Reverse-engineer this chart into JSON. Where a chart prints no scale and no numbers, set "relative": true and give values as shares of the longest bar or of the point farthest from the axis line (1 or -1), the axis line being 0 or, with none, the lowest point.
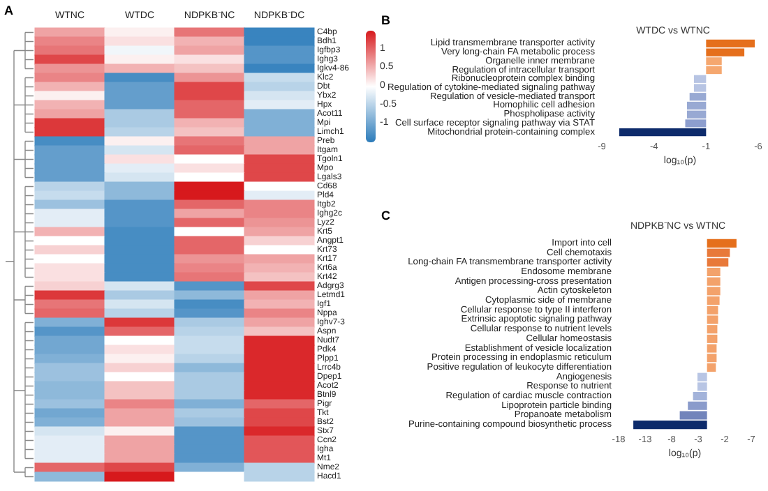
{
  "chart_data": [
    {
      "type": "heatmap",
      "annotations": [
        "A"
      ],
      "categories": [
        "WTNC",
        "WTDC",
        "NDPKB⁻NC",
        "NDPKB⁻DC"
      ],
      "y_categories": [
        "C4bp",
        "Bdh1",
        "Igfbp3",
        "Ighg3",
        "Igkv4-86",
        "Klc2",
        "Dbt",
        "Ybx2",
        "Hpx",
        "Acot11",
        "Mpi",
        "Limch1",
        "Preb",
        "Itgam",
        "Tgoln1",
        "Mpo",
        "Lgals3",
        "Cd68",
        "Pld4",
        "Itgb2",
        "Ighg2c",
        "Lyz2",
        "Krt5",
        "Angpt1",
        "Krt73",
        "Krt17",
        "Krt6a",
        "Krt42",
        "Adgrg3",
        "Letmd1",
        "Igf1",
        "Nppa",
        "Ighv7-3",
        "Aspn",
        "Nudt7",
        "Pdk4",
        "Plpp1",
        "Lrrc4b",
        "Dpep1",
        "Acot2",
        "Btnl9",
        "Pigr",
        "Tkt",
        "Bst2",
        "Stx7",
        "Ccn2",
        "Igha",
        "Mt1",
        "Nme2",
        "Hacd1"
      ],
      "cells": [
        [
          0.6,
          0.1,
          0.9,
          -1.4
        ],
        [
          0.8,
          0.2,
          0.5,
          -1.4
        ],
        [
          0.9,
          -0.1,
          0.6,
          -1.2
        ],
        [
          1.2,
          0.1,
          0.2,
          -1.2
        ],
        [
          0.7,
          0.5,
          0.4,
          -1.4
        ],
        [
          0.8,
          -1.3,
          0.7,
          -0.4
        ],
        [
          0.5,
          -1.1,
          1.2,
          -0.5
        ],
        [
          0.1,
          -1.1,
          1.2,
          -0.3
        ],
        [
          0.5,
          -1.1,
          1.0,
          -0.2
        ],
        [
          0.6,
          -0.6,
          1.0,
          -0.9
        ],
        [
          1.3,
          -0.6,
          0.5,
          -0.9
        ],
        [
          1.3,
          -0.5,
          0.4,
          -0.9
        ],
        [
          -1.3,
          0.1,
          0.9,
          0.6
        ],
        [
          -1.1,
          -0.3,
          1.0,
          0.6
        ],
        [
          -1.1,
          0.2,
          0.0,
          1.2
        ],
        [
          -1.1,
          -0.2,
          0.2,
          1.2
        ],
        [
          -1.1,
          -0.3,
          0.0,
          1.2
        ],
        [
          -0.5,
          -0.8,
          1.5,
          0.0
        ],
        [
          -0.4,
          -0.8,
          1.5,
          -0.2
        ],
        [
          -0.7,
          -1.2,
          1.0,
          0.8
        ],
        [
          -0.2,
          -1.2,
          0.6,
          0.8
        ],
        [
          -0.2,
          -1.2,
          1.0,
          0.7
        ],
        [
          0.5,
          -1.3,
          0.0,
          0.6
        ],
        [
          0.0,
          -1.3,
          1.0,
          0.3
        ],
        [
          0.3,
          -1.3,
          1.0,
          0.0
        ],
        [
          0.0,
          -1.3,
          0.7,
          0.6
        ],
        [
          0.2,
          -1.3,
          0.8,
          0.5
        ],
        [
          0.2,
          -1.3,
          0.9,
          0.4
        ],
        [
          0.3,
          -0.3,
          -1.2,
          1.2
        ],
        [
          1.3,
          -0.6,
          -0.8,
          0.6
        ],
        [
          0.9,
          -0.3,
          -1.3,
          0.5
        ],
        [
          1.0,
          -0.5,
          -1.2,
          0.8
        ],
        [
          -0.9,
          1.3,
          -0.6,
          0.6
        ],
        [
          -1.2,
          1.0,
          -0.5,
          0.4
        ],
        [
          -1.0,
          0.0,
          -0.4,
          1.4
        ],
        [
          -1.0,
          0.2,
          -0.4,
          1.4
        ],
        [
          -0.9,
          0.1,
          -0.5,
          1.4
        ],
        [
          -0.7,
          0.3,
          -0.8,
          1.4
        ],
        [
          -0.7,
          0.0,
          -0.6,
          1.4
        ],
        [
          -0.8,
          0.4,
          -0.6,
          1.4
        ],
        [
          -0.8,
          0.4,
          -0.6,
          1.4
        ],
        [
          -0.7,
          0.8,
          -0.9,
          1.0
        ],
        [
          -1.0,
          0.6,
          -0.6,
          1.2
        ],
        [
          -0.9,
          0.6,
          -0.7,
          1.2
        ],
        [
          -0.3,
          0.1,
          -1.2,
          1.4
        ],
        [
          -0.2,
          0.6,
          -1.2,
          1.1
        ],
        [
          -0.2,
          0.6,
          -1.2,
          1.1
        ],
        [
          -0.2,
          0.6,
          -1.2,
          1.1
        ],
        [
          1.0,
          1.2,
          -0.9,
          -0.5
        ],
        [
          -0.8,
          1.5,
          0.0,
          -0.5
        ]
      ],
      "clim": [
        -1.5,
        1.5
      ],
      "cticks": [
        1,
        0.5,
        0,
        -0.5,
        -1
      ]
    },
    {
      "type": "bar",
      "orientation": "horizontal",
      "title": "WTDC vs WTNC",
      "xlabel": "log₁₀(p)",
      "categories": [
        "Lipid transmembrane transporter activity",
        "Very long-chain FA metabolic process",
        "Organelle inner membrane",
        "Regulation of intracellular transport",
        "Ribonucleoprotein complex binding",
        "Regulation of cytokine-mediated signaling pathway",
        "Regulation of vesicle-mediated transport",
        "Homophilic cell adhesion",
        "Phospholipase activity",
        "Cell surface receptor signaling pathway via STAT",
        "Mitochondrial protein-containing complex"
      ],
      "values": [
        0.56,
        0.44,
        0.18,
        0.18,
        -0.14,
        -0.14,
        -0.19,
        -0.22,
        -0.22,
        -0.24,
        -1
      ],
      "relative": true,
      "colors": [
        "#e56f1c",
        "#e56f1c",
        "#f5a76f",
        "#f5a76f",
        "#b7c4e3",
        "#b7c4e3",
        "#98a9d3",
        "#98a9d3",
        "#98a9d3",
        "#8d9ece",
        "#0d2b6b"
      ],
      "annotations": [
        "B",
        "-9",
        "-4",
        "-1",
        "-6"
      ]
    },
    {
      "type": "bar",
      "orientation": "horizontal",
      "title": "NDPKB⁻NC vs WTNC",
      "xlabel": "log₁₀(p)",
      "categories": [
        "Import into cell",
        "Cell chemotaxis",
        "Long-chain FA transmembrane transporter activity",
        "Endosome membrane",
        "Antigen processing-cross presentation",
        "Actin cytoskeleton",
        "Cytoplasmic side of membrane",
        "Cellular response to type II interferon",
        "Extrinsic apoptotic signaling pathway",
        "Cellular response to nutrient levels",
        "Cellular homeostasis",
        "Establishment of vesicle localization",
        "Protein processing in endoplasmic reticulum",
        "Positive regulation of leukocyte differentiation",
        "Angiogenesis",
        "Response to nutrient",
        "Regulation of cardiac muscle contraction",
        "Lipoprotein particle binding",
        "Propanoate metabolism",
        "Purine-containing compound biosynthetic process"
      ],
      "values": [
        0.4,
        0.31,
        0.29,
        0.18,
        0.18,
        0.18,
        0.17,
        0.15,
        0.15,
        0.14,
        0.14,
        0.13,
        0.13,
        0.12,
        -0.13,
        -0.13,
        -0.19,
        -0.26,
        -0.37,
        -1
      ],
      "relative": true,
      "colors": [
        "#e56f1c",
        "#e8793a",
        "#e8793a",
        "#f3a26b",
        "#f3a26b",
        "#f3a26b",
        "#f3a26b",
        "#f3a26b",
        "#f3a26b",
        "#f3a26b",
        "#f3a26b",
        "#f3a26b",
        "#f3a26b",
        "#f3a26b",
        "#b8c5e4",
        "#b8c5e4",
        "#a3b3da",
        "#8a9bcb",
        "#7284bb",
        "#0d2b6b"
      ],
      "annotations": [
        "C",
        "-18",
        "-13",
        "-8",
        "-3",
        "-2",
        "-7"
      ]
    }
  ]
}
